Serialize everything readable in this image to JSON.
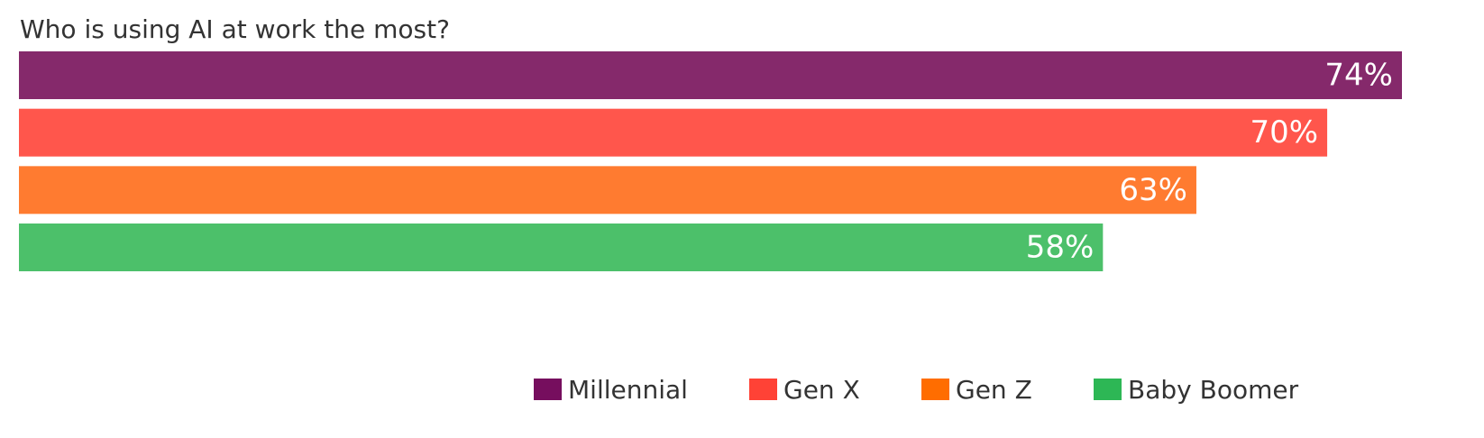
{
  "chart_data": {
    "type": "bar",
    "orientation": "horizontal",
    "title": "Who is using AI at work the most?",
    "categories": [
      "Millennial",
      "Gen X",
      "Gen Z",
      "Baby Boomer"
    ],
    "values": [
      74,
      70,
      63,
      58
    ],
    "data_labels": [
      "74%",
      "70%",
      "63%",
      "58%"
    ],
    "unit": "%",
    "colors": [
      "#85296B",
      "#FF564C",
      "#FF7B30",
      "#4CC06A"
    ],
    "legend_colors": [
      "#760E5E",
      "#FF4236",
      "#FF6D00",
      "#2DB755"
    ],
    "xlim": [
      0,
      74
    ],
    "grid": false,
    "legend": {
      "position": "bottom-right",
      "entries": [
        "Millennial",
        "Gen X",
        "Gen Z",
        "Baby Boomer"
      ]
    }
  }
}
